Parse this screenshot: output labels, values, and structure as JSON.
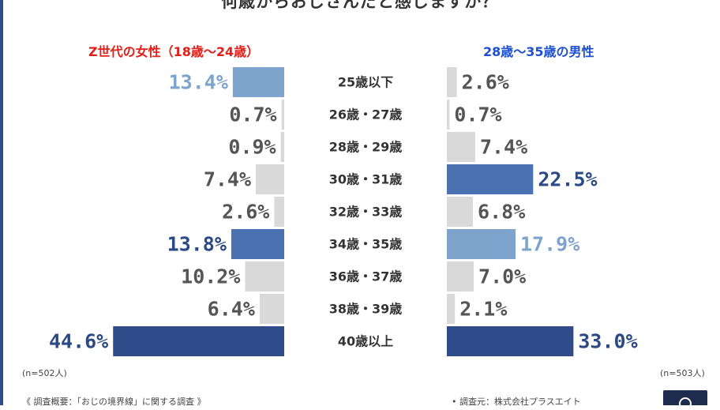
{
  "title": "何歳からおじさんだと感じますか？",
  "left_panel_title": "Z世代の女性（18歳〜24歳）",
  "right_panel_title": "28歳〜35歳の男性",
  "left_sample": "(n=502人)",
  "right_sample": "(n=503人)",
  "survey_note": "《 調査概要：「おじの境界線」に関する調査 》",
  "source_note": "• 調査元：株式会社プラスエイト",
  "colors": {
    "dark": "#2f4b8a",
    "mid": "#4a72b0",
    "light": "#7ea3cc",
    "gray": "#d9d9d9",
    "label_dark": "#2b4a85",
    "label_light": "#7ea3cc",
    "label_gray": "#555555"
  },
  "chart_data": {
    "type": "bar",
    "orientation": "horizontal",
    "layout": "butterfly",
    "categories": [
      "25歳以下",
      "26歳・27歳",
      "28歳・29歳",
      "30歳・31歳",
      "32歳・33歳",
      "34歳・35歳",
      "36歳・37歳",
      "38歳・39歳",
      "40歳以上"
    ],
    "series": [
      {
        "name": "Z世代の女性（18歳〜24歳）",
        "values": [
          13.4,
          0.7,
          0.9,
          7.4,
          2.6,
          13.8,
          10.2,
          6.4,
          44.6
        ],
        "labels": [
          "13.4%",
          "0.7%",
          "0.9%",
          "7.4%",
          "2.6%",
          "13.8%",
          "10.2%",
          "6.4%",
          "44.6%"
        ],
        "colors": [
          "light",
          "gray",
          "gray",
          "gray",
          "gray",
          "mid",
          "gray",
          "gray",
          "dark"
        ]
      },
      {
        "name": "28歳〜35歳の男性",
        "values": [
          2.6,
          0.7,
          7.4,
          22.5,
          6.8,
          17.9,
          7.0,
          2.1,
          33.0
        ],
        "labels": [
          "2.6%",
          "0.7%",
          "7.4%",
          "22.5%",
          "6.8%",
          "17.9%",
          "7.0%",
          "2.1%",
          "33.0%"
        ],
        "colors": [
          "gray",
          "gray",
          "gray",
          "mid",
          "gray",
          "light",
          "gray",
          "gray",
          "dark"
        ]
      }
    ],
    "unit": "%"
  }
}
